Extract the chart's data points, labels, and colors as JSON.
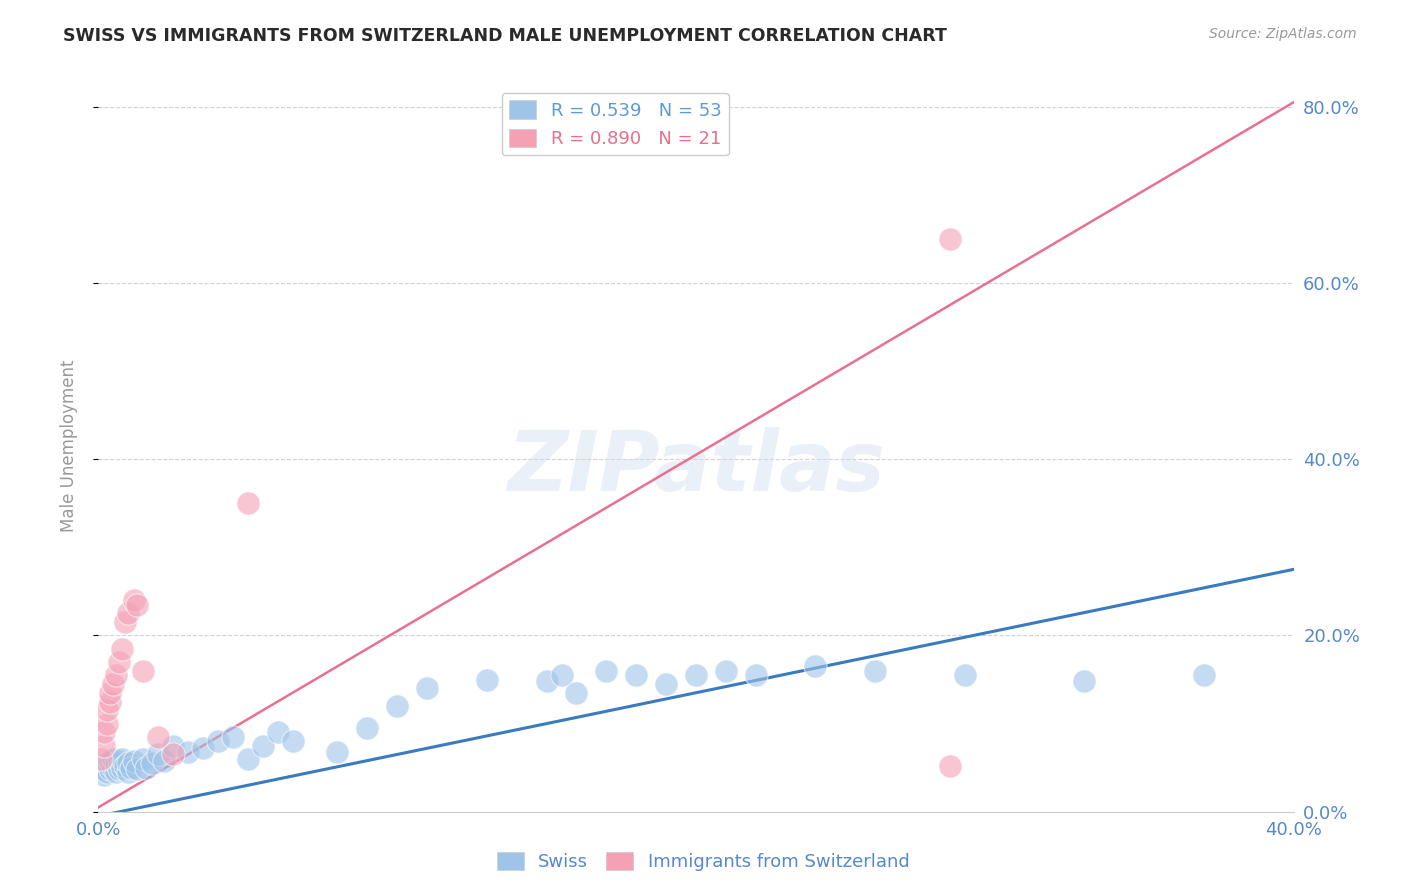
{
  "title": "SWISS VS IMMIGRANTS FROM SWITZERLAND MALE UNEMPLOYMENT CORRELATION CHART",
  "source": "Source: ZipAtlas.com",
  "ylabel_label": "Male Unemployment",
  "xlim": [
    0.0,
    0.4
  ],
  "ylim": [
    0.0,
    0.83
  ],
  "xticks": [
    0.0,
    0.4
  ],
  "yticks": [
    0.0,
    0.2,
    0.4,
    0.6,
    0.8
  ],
  "legend_entries": [
    {
      "label": "R = 0.539   N = 53",
      "color": "#5b9bd5"
    },
    {
      "label": "R = 0.890   N = 21",
      "color": "#e8708a"
    }
  ],
  "legend_bottom": [
    "Swiss",
    "Immigrants from Switzerland"
  ],
  "watermark": "ZIPatlas",
  "swiss_scatter_x": [
    0.001,
    0.002,
    0.003,
    0.003,
    0.004,
    0.004,
    0.005,
    0.005,
    0.006,
    0.006,
    0.007,
    0.007,
    0.008,
    0.008,
    0.009,
    0.01,
    0.01,
    0.011,
    0.012,
    0.013,
    0.015,
    0.016,
    0.018,
    0.02,
    0.022,
    0.025,
    0.03,
    0.035,
    0.04,
    0.045,
    0.05,
    0.055,
    0.06,
    0.065,
    0.08,
    0.09,
    0.1,
    0.11,
    0.13,
    0.15,
    0.155,
    0.16,
    0.17,
    0.18,
    0.19,
    0.2,
    0.21,
    0.22,
    0.24,
    0.26,
    0.29,
    0.33,
    0.37
  ],
  "swiss_scatter_y": [
    0.05,
    0.042,
    0.045,
    0.055,
    0.048,
    0.058,
    0.05,
    0.06,
    0.045,
    0.055,
    0.048,
    0.058,
    0.05,
    0.06,
    0.052,
    0.045,
    0.055,
    0.05,
    0.058,
    0.048,
    0.06,
    0.05,
    0.055,
    0.065,
    0.058,
    0.075,
    0.068,
    0.072,
    0.08,
    0.085,
    0.06,
    0.075,
    0.09,
    0.08,
    0.068,
    0.095,
    0.12,
    0.14,
    0.15,
    0.148,
    0.155,
    0.135,
    0.16,
    0.155,
    0.145,
    0.155,
    0.16,
    0.155,
    0.165,
    0.16,
    0.155,
    0.148,
    0.155
  ],
  "swiss_line_x": [
    0.0,
    0.4
  ],
  "swiss_line_y": [
    -0.005,
    0.275
  ],
  "imm_scatter_x": [
    0.001,
    0.002,
    0.002,
    0.003,
    0.003,
    0.004,
    0.004,
    0.005,
    0.006,
    0.007,
    0.008,
    0.009,
    0.01,
    0.012,
    0.013,
    0.015,
    0.02,
    0.025,
    0.05,
    0.285,
    0.285
  ],
  "imm_scatter_y": [
    0.06,
    0.075,
    0.09,
    0.1,
    0.115,
    0.125,
    0.135,
    0.145,
    0.155,
    0.17,
    0.185,
    0.215,
    0.225,
    0.24,
    0.235,
    0.16,
    0.085,
    0.065,
    0.35,
    0.65,
    0.052
  ],
  "imm_line_x": [
    0.0,
    0.4
  ],
  "imm_line_y": [
    0.005,
    0.805
  ],
  "swiss_color": "#9ec4e8",
  "imm_color": "#f4a0b5",
  "swiss_line_color": "#3a7abf",
  "imm_line_color": "#e87090",
  "bg_color": "#ffffff",
  "grid_color": "#cccccc",
  "title_color": "#333333",
  "tick_color": "#5588cc"
}
